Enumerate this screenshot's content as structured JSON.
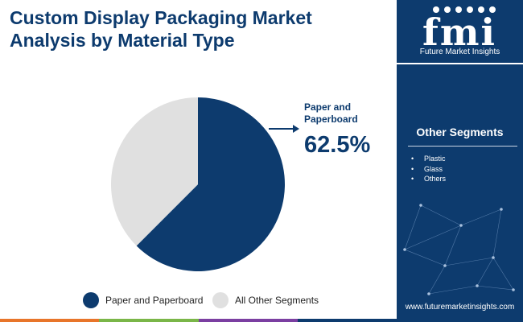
{
  "title": "Custom Display Packaging Market Analysis by Material Type",
  "chart_data": {
    "type": "pie",
    "slices": [
      {
        "label": "Paper and Paperboard",
        "value": 62.5,
        "color": "#0d3b6e"
      },
      {
        "label": "All Other Segments",
        "value": 37.5,
        "color": "#e0e0e0"
      }
    ],
    "callout": {
      "label": "Paper and Paperboard",
      "value": "62.5%"
    },
    "legend": {
      "placement": "bottom"
    }
  },
  "legend": {
    "items": [
      {
        "label": "Paper and Paperboard",
        "color": "#0d3b6e"
      },
      {
        "label": "All Other Segments",
        "color": "#e0e0e0"
      }
    ]
  },
  "sidebar": {
    "brand": "fmi",
    "brand_full": "Future Market Insights",
    "segments_title": "Other Segments",
    "segments": [
      "Plastic",
      "Glass",
      "Others"
    ],
    "url": "www.futuremarketinsights.com"
  },
  "colors": {
    "brand": "#0d3b6e",
    "other": "#e0e0e0",
    "bottom_bar": [
      "#e8752a",
      "#7ab648",
      "#7b3fa1",
      "#0d3b6e"
    ]
  }
}
